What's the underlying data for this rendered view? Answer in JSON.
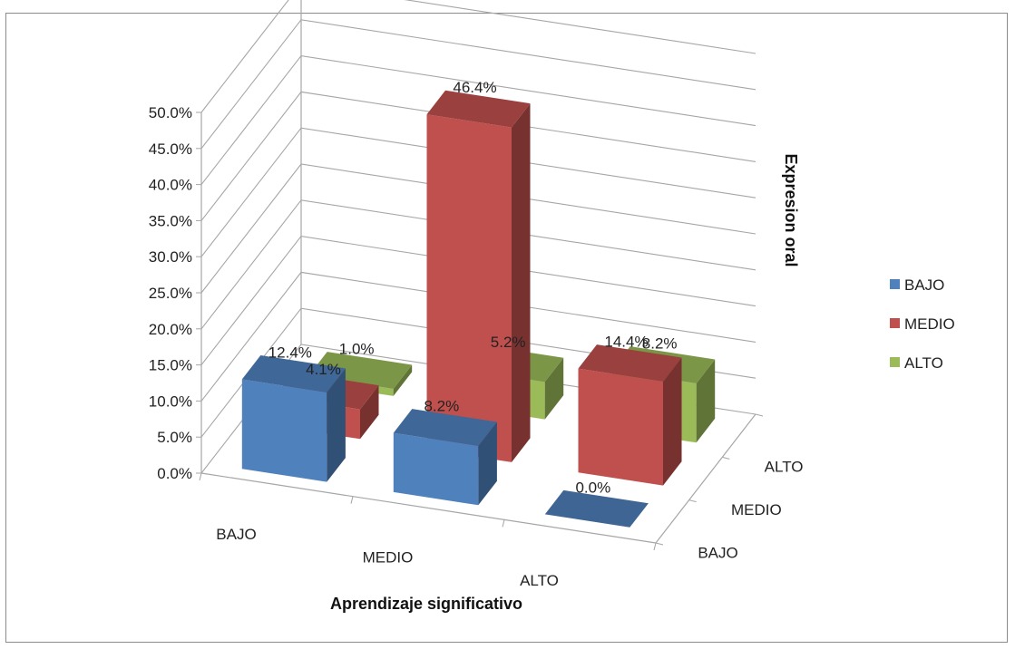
{
  "chart_data": {
    "type": "bar",
    "variant": "3d-column",
    "x_title": "Aprendizaje significativo",
    "z_title": "Expresion oral",
    "categories": [
      "BAJO",
      "MEDIO",
      "ALTO"
    ],
    "depth_categories": [
      "BAJO",
      "MEDIO",
      "ALTO"
    ],
    "series": [
      {
        "name": "BAJO",
        "color": "#4F81BD",
        "values": [
          12.4,
          8.2,
          0.0
        ],
        "labels": [
          "12.4%",
          "8.2%",
          "0.0%"
        ]
      },
      {
        "name": "MEDIO",
        "color": "#C0504D",
        "values": [
          4.1,
          46.4,
          14.4
        ],
        "labels": [
          "4.1%",
          "46.4%",
          "14.4%"
        ]
      },
      {
        "name": "ALTO",
        "color": "#9BBB59",
        "values": [
          1.0,
          5.2,
          8.2
        ],
        "labels": [
          "1.0%",
          "5.2%",
          "8.2%"
        ]
      }
    ],
    "y_ticks": [
      "0.0%",
      "5.0%",
      "10.0%",
      "15.0%",
      "20.0%",
      "25.0%",
      "30.0%",
      "35.0%",
      "40.0%",
      "45.0%",
      "50.0%"
    ],
    "ylim": [
      0,
      50
    ],
    "grid": true,
    "legend": "right"
  }
}
